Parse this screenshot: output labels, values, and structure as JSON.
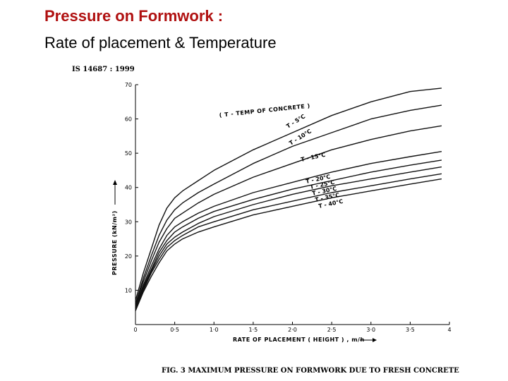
{
  "slide": {
    "title": "Pressure on Formwork :",
    "subtitle": "Rate of placement & Temperature"
  },
  "chart_data": {
    "type": "line",
    "standard": "IS 14687 : 1999",
    "legend_note": "( T - TEMP OF CONCRETE )",
    "caption": "FIG. 3  MAXIMUM PRESSURE ON FORMWORK DUE TO FRESH CONCRETE",
    "xlabel": "RATE  OF  PLACEMENT ( HEIGHT ) , m/h",
    "ylabel": "PRESSURE (kN/m²)",
    "xlim": [
      0,
      4
    ],
    "ylim": [
      0,
      70
    ],
    "xticks": [
      "0",
      "0·5",
      "1·0",
      "1·5",
      "2·0",
      "2·5",
      "3·0",
      "3·5",
      "4"
    ],
    "yticks": [
      "10",
      "20",
      "30",
      "40",
      "50",
      "60",
      "70"
    ],
    "x": [
      0,
      0.1,
      0.2,
      0.3,
      0.4,
      0.5,
      0.6,
      0.8,
      1.0,
      1.5,
      2.0,
      2.5,
      3.0,
      3.5,
      3.9
    ],
    "series": [
      {
        "name": "T - 5°C",
        "values": [
          7,
          15,
          22,
          29,
          34,
          37,
          39,
          42,
          45,
          51,
          56,
          61,
          65,
          68,
          69
        ]
      },
      {
        "name": "T - 10°C",
        "values": [
          6,
          13.5,
          20,
          26,
          30.5,
          33.5,
          35.5,
          38.5,
          41,
          47,
          52,
          56,
          60,
          62.5,
          64
        ]
      },
      {
        "name": "T - 15°C",
        "values": [
          6,
          12.5,
          18.5,
          24,
          28,
          31,
          32.5,
          35.5,
          38,
          43,
          47,
          51,
          54,
          56.5,
          58
        ]
      },
      {
        "name": "T - 20°C",
        "values": [
          5.5,
          11.5,
          17,
          22,
          26,
          28.5,
          30,
          32.5,
          34.5,
          38.5,
          41.5,
          44.5,
          47,
          49,
          50.5
        ]
      },
      {
        "name": "T - 25°C",
        "values": [
          5,
          11,
          16,
          21,
          24.5,
          27,
          28.5,
          31,
          33,
          36.5,
          39.5,
          42,
          44.5,
          46.5,
          48
        ]
      },
      {
        "name": "T - 30°C",
        "values": [
          5,
          10.5,
          15.5,
          20,
          23.5,
          25.5,
          27,
          29.5,
          31.5,
          35,
          38,
          40.5,
          42.5,
          44.5,
          46
        ]
      },
      {
        "name": "T - 35°C",
        "values": [
          4.5,
          10,
          15,
          19,
          22.5,
          24.5,
          26,
          28.5,
          30,
          33.5,
          36,
          38.5,
          40.5,
          42.5,
          44
        ]
      },
      {
        "name": "T - 40°C",
        "values": [
          4,
          9.5,
          14,
          18,
          21.5,
          23.5,
          25,
          27,
          28.5,
          32,
          34.5,
          37,
          39,
          41,
          42.5
        ]
      }
    ]
  }
}
